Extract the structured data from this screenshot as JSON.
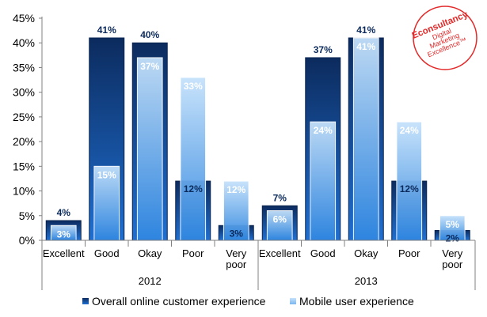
{
  "chart_data": {
    "type": "bar",
    "ylim": [
      0,
      45
    ],
    "yticks": [
      0,
      5,
      10,
      15,
      20,
      25,
      30,
      35,
      40,
      45
    ],
    "tick_format": "%",
    "categories": [
      "Excellent",
      "Good",
      "Okay",
      "Poor",
      "Very poor"
    ],
    "groups": [
      "2012",
      "2013"
    ],
    "series": [
      {
        "name": "Overall online customer experience",
        "values_by_group": [
          [
            4,
            41,
            40,
            12,
            3
          ],
          [
            7,
            37,
            41,
            12,
            2
          ]
        ],
        "labels_by_group": [
          [
            "4%",
            "41%",
            "40%",
            "12%",
            "3%"
          ],
          [
            "7%",
            "37%",
            "41%",
            "12%",
            "2%"
          ]
        ],
        "color": "#0b3a7a"
      },
      {
        "name": "Mobile user experience",
        "values_by_group": [
          [
            3,
            15,
            37,
            33,
            12
          ],
          [
            6,
            24,
            41,
            24,
            5
          ]
        ],
        "labels_by_group": [
          [
            "3%",
            "15%",
            "37%",
            "33%",
            "12%"
          ],
          [
            "6%",
            "24%",
            "41%",
            "24%",
            "5%"
          ]
        ],
        "color": "#8fc3f0"
      }
    ],
    "legend_position": "bottom"
  },
  "logo": {
    "lines": [
      "Econsultancy",
      "Digital",
      "Marketing",
      "Excellence™"
    ],
    "color": "#e32a2a"
  }
}
